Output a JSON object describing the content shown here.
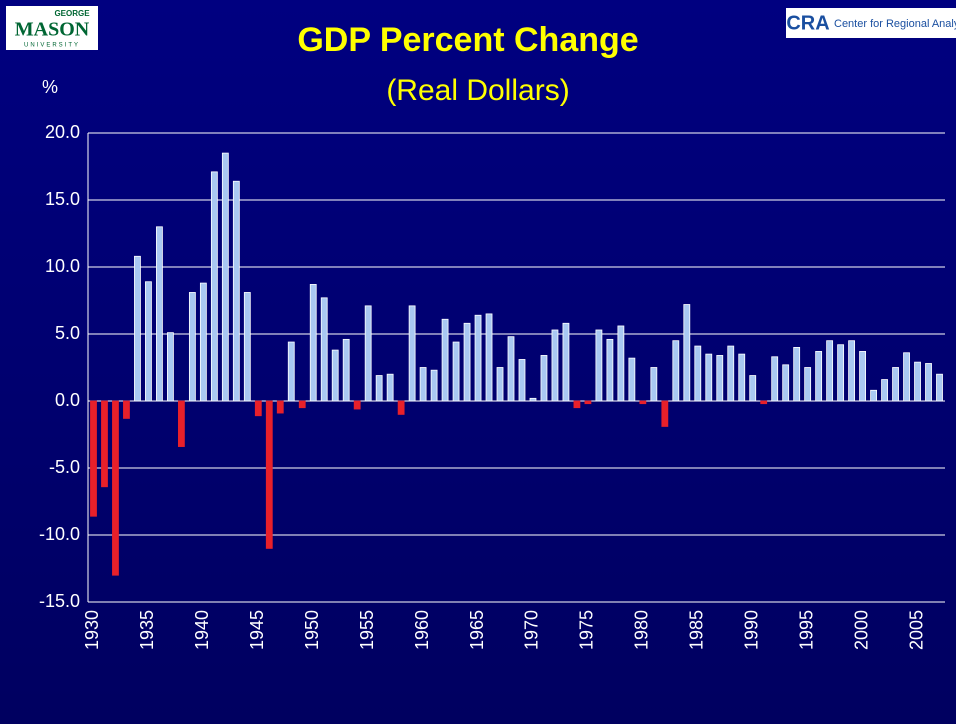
{
  "logos": {
    "left_top": "GEORGE",
    "left_main": "MASON",
    "left_bottom": "UNIVERSITY",
    "right_mark": "CRA",
    "right_text": "Center for Regional Analy"
  },
  "chart_data": {
    "type": "bar",
    "title": "GDP Percent Change",
    "subtitle": "(Real Dollars)",
    "y_label": "%",
    "categories": [
      "1930",
      null,
      null,
      null,
      null,
      "1935",
      null,
      null,
      null,
      null,
      "1940",
      null,
      null,
      null,
      null,
      "1945",
      null,
      null,
      null,
      null,
      "1950",
      null,
      null,
      null,
      null,
      "1955",
      null,
      null,
      null,
      null,
      "1960",
      null,
      null,
      null,
      null,
      "1965",
      null,
      null,
      null,
      null,
      "1970",
      null,
      null,
      null,
      null,
      "1975",
      null,
      null,
      null,
      null,
      "1980",
      null,
      null,
      null,
      null,
      "1985",
      null,
      null,
      null,
      null,
      "1990",
      null,
      null,
      null,
      null,
      "1995",
      null,
      null,
      null,
      null,
      "2000",
      null,
      null,
      null,
      null,
      "2005",
      null,
      null
    ],
    "values": [
      -8.6,
      -6.4,
      -13.0,
      -1.3,
      10.8,
      8.9,
      13.0,
      5.1,
      -3.4,
      8.1,
      8.8,
      17.1,
      18.5,
      16.4,
      8.1,
      -1.1,
      -11.0,
      -0.9,
      4.4,
      -0.5,
      8.7,
      7.7,
      3.8,
      4.6,
      -0.6,
      7.1,
      1.9,
      2.0,
      -1.0,
      7.1,
      2.5,
      2.3,
      6.1,
      4.4,
      5.8,
      6.4,
      6.5,
      2.5,
      4.8,
      3.1,
      0.2,
      3.4,
      5.3,
      5.8,
      -0.5,
      -0.2,
      5.3,
      4.6,
      5.6,
      3.2,
      -0.2,
      2.5,
      -1.9,
      4.5,
      7.2,
      4.1,
      3.5,
      3.4,
      4.1,
      3.5,
      1.9,
      -0.2,
      3.3,
      2.7,
      4.0,
      2.5,
      3.7,
      4.5,
      4.2,
      4.5,
      3.7,
      0.8,
      1.6,
      2.5,
      3.6,
      2.9,
      2.8,
      2.0
    ],
    "positive_color": "#a9c8f2",
    "negative_color": "#e8202a",
    "ylim": [
      -15,
      20
    ],
    "yticks": [
      {
        "value": -15,
        "label": "-15.0"
      },
      {
        "value": -10,
        "label": "-10.0"
      },
      {
        "value": -5,
        "label": "-5.0"
      },
      {
        "value": 0,
        "label": "0.0"
      },
      {
        "value": 5,
        "label": "5.0"
      },
      {
        "value": 10,
        "label": "10.0"
      },
      {
        "value": 15,
        "label": "15.0"
      },
      {
        "value": 20,
        "label": "20.0"
      }
    ],
    "grid": true
  }
}
